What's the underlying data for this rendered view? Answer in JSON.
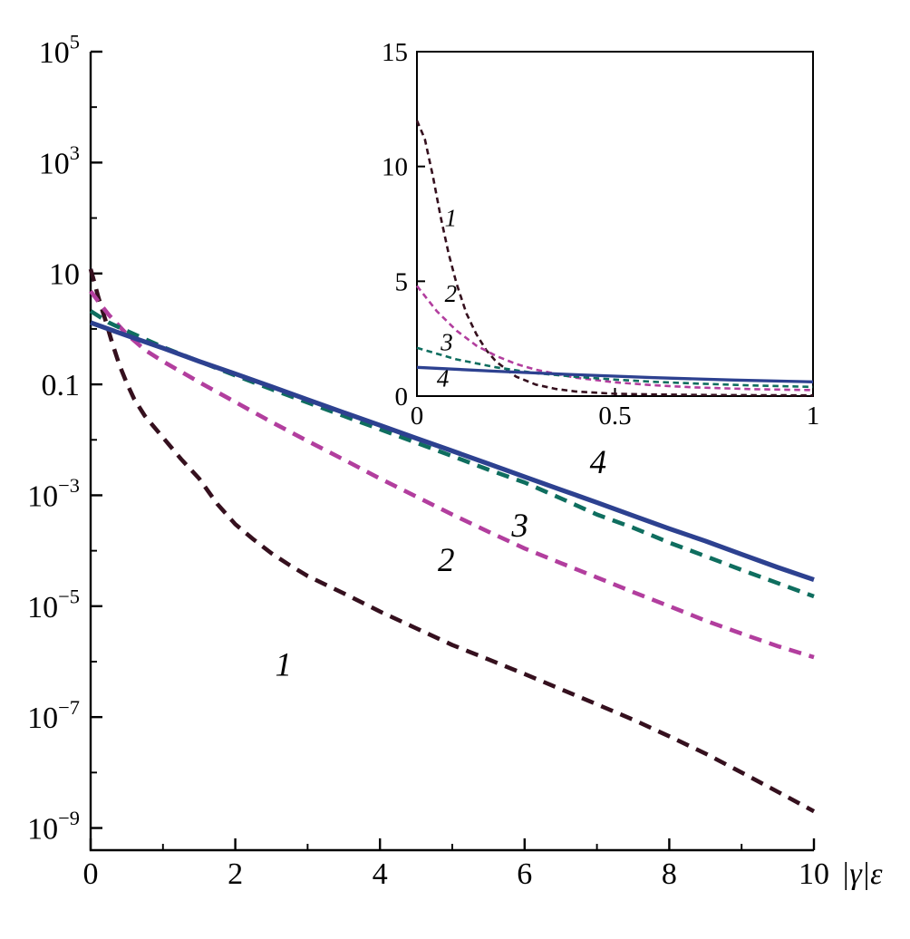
{
  "figure": {
    "background": "#ffffff",
    "axis_color": "#000000",
    "curve_colors": {
      "curve1": "#35101e",
      "curve2": "#b23e9e",
      "curve3": "#0f6e5f",
      "curve4": "#2d4190"
    }
  },
  "chart_data": [
    {
      "id": "main",
      "type": "line",
      "title": "",
      "xlabel": "|γ|ε",
      "ylabel": "",
      "grid": false,
      "x_range": [
        0,
        10
      ],
      "y_scale": "log",
      "y_range_log": [
        -9.4,
        5
      ],
      "frame": "axes",
      "x_ticks": [
        {
          "v": 0,
          "label": "0"
        },
        {
          "v": 2,
          "label": "2"
        },
        {
          "v": 4,
          "label": "4"
        },
        {
          "v": 6,
          "label": "6"
        },
        {
          "v": 8,
          "label": "8"
        },
        {
          "v": 10,
          "label": "10"
        }
      ],
      "x_minor_ticks": [
        1,
        3,
        5,
        7,
        9
      ],
      "y_ticks": [
        {
          "log": 5,
          "label": "10^5"
        },
        {
          "log": 3,
          "label": "10^3"
        },
        {
          "log": 1,
          "label": "10"
        },
        {
          "log": -1,
          "label": "0.1"
        },
        {
          "log": -3,
          "label": "10^-3"
        },
        {
          "log": -5,
          "label": "10^-5"
        },
        {
          "log": -7,
          "label": "10^-7"
        },
        {
          "log": -9,
          "label": "10^-9"
        }
      ],
      "y_minor_ticks_log": [
        4,
        2,
        0,
        -2,
        -4,
        -6,
        -8
      ],
      "series": [
        {
          "name": "1",
          "color": "#35101e",
          "style": "dashed",
          "points": [
            [
              0,
              12
            ],
            [
              0.05,
              7
            ],
            [
              0.1,
              4
            ],
            [
              0.15,
              2.4
            ],
            [
              0.2,
              1.5
            ],
            [
              0.3,
              0.55
            ],
            [
              0.4,
              0.22
            ],
            [
              0.5,
              0.105
            ],
            [
              0.6,
              0.055
            ],
            [
              0.75,
              0.027
            ],
            [
              1,
              0.011
            ],
            [
              1.25,
              0.0045
            ],
            [
              1.5,
              0.002
            ],
            [
              1.75,
              0.0007
            ],
            [
              2,
              0.0003
            ],
            [
              2.25,
              0.00016
            ],
            [
              2.5,
              9e-05
            ],
            [
              2.75,
              5.5e-05
            ],
            [
              3,
              3.5e-05
            ],
            [
              3.5,
              1.7e-05
            ],
            [
              4,
              8e-06
            ],
            [
              4.5,
              4e-06
            ],
            [
              5,
              2e-06
            ],
            [
              5.5,
              1.1e-06
            ],
            [
              6,
              6e-07
            ],
            [
              6.5,
              3.2e-07
            ],
            [
              7,
              1.7e-07
            ],
            [
              7.5,
              9e-08
            ],
            [
              8,
              4.5e-08
            ],
            [
              8.5,
              2.2e-08
            ],
            [
              9,
              1e-08
            ],
            [
              9.5,
              4.5e-09
            ],
            [
              10,
              2e-09
            ]
          ]
        },
        {
          "name": "2",
          "color": "#b23e9e",
          "style": "dashed",
          "points": [
            [
              0,
              4.8
            ],
            [
              0.1,
              3.2
            ],
            [
              0.25,
              1.8
            ],
            [
              0.5,
              0.8
            ],
            [
              0.75,
              0.42
            ],
            [
              1,
              0.26
            ],
            [
              1.5,
              0.11
            ],
            [
              2,
              0.048
            ],
            [
              2.5,
              0.021
            ],
            [
              3,
              0.0095
            ],
            [
              3.5,
              0.0044
            ],
            [
              4,
              0.002
            ],
            [
              4.5,
              0.00095
            ],
            [
              5,
              0.00045
            ],
            [
              5.5,
              0.00022
            ],
            [
              6,
              0.00011
            ],
            [
              6.5,
              6e-05
            ],
            [
              7,
              3.3e-05
            ],
            [
              7.5,
              1.8e-05
            ],
            [
              8,
              1e-05
            ],
            [
              8.5,
              5.5e-06
            ],
            [
              9,
              3.2e-06
            ],
            [
              9.5,
              1.9e-06
            ],
            [
              10,
              1.2e-06
            ]
          ]
        },
        {
          "name": "3",
          "color": "#0f6e5f",
          "style": "dashed",
          "points": [
            [
              0,
              2.1
            ],
            [
              0.25,
              1.3
            ],
            [
              0.5,
              0.92
            ],
            [
              1,
              0.47
            ],
            [
              1.5,
              0.26
            ],
            [
              2,
              0.145
            ],
            [
              2.5,
              0.082
            ],
            [
              3,
              0.047
            ],
            [
              3.5,
              0.027
            ],
            [
              4,
              0.0155
            ],
            [
              4.5,
              0.0089
            ],
            [
              5,
              0.0051
            ],
            [
              5.5,
              0.0029
            ],
            [
              6,
              0.0017
            ],
            [
              6.5,
              0.00088
            ],
            [
              7,
              0.00045
            ],
            [
              7.5,
              0.00026
            ],
            [
              8,
              0.00014
            ],
            [
              8.5,
              8e-05
            ],
            [
              9,
              4.5e-05
            ],
            [
              9.5,
              2.6e-05
            ],
            [
              10,
              1.5e-05
            ]
          ]
        },
        {
          "name": "4",
          "color": "#2d4190",
          "style": "solid",
          "points": [
            [
              0,
              1.3
            ],
            [
              0.5,
              0.76
            ],
            [
              1,
              0.45
            ],
            [
              1.5,
              0.26
            ],
            [
              2,
              0.155
            ],
            [
              2.5,
              0.091
            ],
            [
              3,
              0.053
            ],
            [
              3.5,
              0.031
            ],
            [
              4,
              0.0183
            ],
            [
              4.5,
              0.0107
            ],
            [
              5,
              0.0063
            ],
            [
              5.5,
              0.0037
            ],
            [
              6,
              0.00215
            ],
            [
              6.5,
              0.00126
            ],
            [
              7,
              0.00074
            ],
            [
              7.5,
              0.00043
            ],
            [
              8,
              0.00025
            ],
            [
              8.5,
              0.00015
            ],
            [
              9,
              8.6e-05
            ],
            [
              9.5,
              5e-05
            ],
            [
              10,
              3e-05
            ]
          ]
        }
      ],
      "curve_labels": [
        {
          "text": "1",
          "x": 2.55,
          "y": 5.6e-07
        },
        {
          "text": "2",
          "x": 4.8,
          "y": 4.3e-05
        },
        {
          "text": "3",
          "x": 5.82,
          "y": 0.00018
        },
        {
          "text": "4",
          "x": 6.9,
          "y": 0.0025
        }
      ]
    },
    {
      "id": "inset",
      "type": "line",
      "title": "",
      "xlabel": "",
      "ylabel": "",
      "grid": false,
      "x_range": [
        0,
        1
      ],
      "y_scale": "linear",
      "y_range": [
        0,
        15
      ],
      "frame": "box",
      "x_ticks": [
        {
          "v": 0,
          "label": "0"
        },
        {
          "v": 0.5,
          "label": "0.5"
        },
        {
          "v": 1,
          "label": "1"
        }
      ],
      "y_ticks": [
        {
          "v": 0,
          "label": "0"
        },
        {
          "v": 5,
          "label": "5"
        },
        {
          "v": 10,
          "label": "10"
        },
        {
          "v": 15,
          "label": "15"
        }
      ],
      "series": [
        {
          "name": "1",
          "color": "#35101e",
          "style": "dashed",
          "points": [
            [
              0,
              12
            ],
            [
              0.02,
              11.2
            ],
            [
              0.04,
              9.6
            ],
            [
              0.06,
              7.8
            ],
            [
              0.08,
              6.2
            ],
            [
              0.1,
              4.9
            ],
            [
              0.125,
              3.6
            ],
            [
              0.15,
              2.7
            ],
            [
              0.175,
              2.0
            ],
            [
              0.2,
              1.5
            ],
            [
              0.25,
              0.85
            ],
            [
              0.3,
              0.5
            ],
            [
              0.35,
              0.31
            ],
            [
              0.4,
              0.2
            ],
            [
              0.5,
              0.1
            ],
            [
              0.6,
              0.07
            ],
            [
              0.7,
              0.05
            ],
            [
              0.85,
              0.04
            ],
            [
              1,
              0.03
            ]
          ]
        },
        {
          "name": "2",
          "color": "#b23e9e",
          "style": "dashed",
          "points": [
            [
              0,
              4.8
            ],
            [
              0.05,
              3.7
            ],
            [
              0.1,
              2.85
            ],
            [
              0.15,
              2.2
            ],
            [
              0.2,
              1.75
            ],
            [
              0.25,
              1.4
            ],
            [
              0.3,
              1.15
            ],
            [
              0.4,
              0.8
            ],
            [
              0.5,
              0.6
            ],
            [
              0.6,
              0.47
            ],
            [
              0.7,
              0.38
            ],
            [
              0.85,
              0.3
            ],
            [
              1,
              0.26
            ]
          ]
        },
        {
          "name": "3",
          "color": "#0f6e5f",
          "style": "dashed",
          "points": [
            [
              0,
              2.1
            ],
            [
              0.1,
              1.6
            ],
            [
              0.2,
              1.25
            ],
            [
              0.3,
              1.0
            ],
            [
              0.4,
              0.84
            ],
            [
              0.5,
              0.72
            ],
            [
              0.6,
              0.62
            ],
            [
              0.7,
              0.55
            ],
            [
              0.85,
              0.46
            ],
            [
              1,
              0.4
            ]
          ]
        },
        {
          "name": "4",
          "color": "#2d4190",
          "style": "solid",
          "points": [
            [
              0,
              1.25
            ],
            [
              0.2,
              1.08
            ],
            [
              0.4,
              0.93
            ],
            [
              0.6,
              0.8
            ],
            [
              0.8,
              0.7
            ],
            [
              1,
              0.62
            ]
          ]
        }
      ],
      "curve_labels": [
        {
          "text": "1",
          "x": 0.07,
          "y": 7.4
        },
        {
          "text": "2",
          "x": 0.07,
          "y": 4.1
        },
        {
          "text": "3",
          "x": 0.06,
          "y": 2.0
        },
        {
          "text": "4",
          "x": 0.05,
          "y": 0.42
        }
      ]
    }
  ]
}
